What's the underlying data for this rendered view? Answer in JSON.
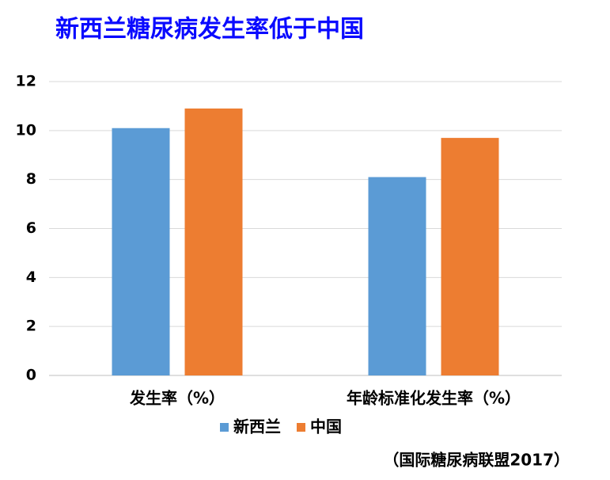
{
  "chart_data": {
    "type": "bar",
    "title": "新西兰糖尿病发生率低于中国",
    "categories": [
      "发生率（%）",
      "年龄标准化发生率（%）"
    ],
    "series": [
      {
        "name": "新西兰",
        "color": "#5b9bd5",
        "values": [
          10.1,
          8.1
        ]
      },
      {
        "name": "中国",
        "color": "#ed7d31",
        "values": [
          10.9,
          9.7
        ]
      }
    ],
    "ylim": [
      0,
      12
    ],
    "yticks": [
      0,
      2,
      4,
      6,
      8,
      10,
      12
    ],
    "grid": true,
    "legend": "bottom",
    "source": "（国际糖尿病联盟2017）"
  }
}
